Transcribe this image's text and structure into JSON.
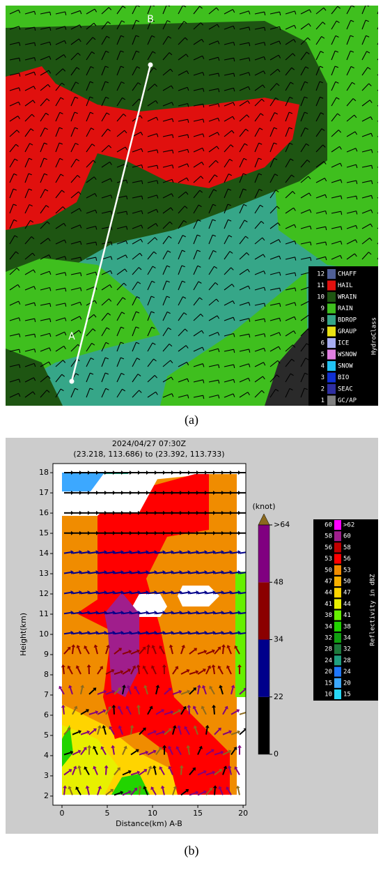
{
  "chart_data": [
    {
      "type": "hydroclass-map",
      "panel_label": "(a)",
      "annotations": [
        "A",
        "B"
      ],
      "legend": {
        "title": "HydroClass",
        "entries": [
          {
            "code": 12,
            "name": "CHAFF",
            "color": "#4f5f96"
          },
          {
            "code": 11,
            "name": "HAIL",
            "color": "#e0100e"
          },
          {
            "code": 10,
            "name": "WRAIN",
            "color": "#1e5512"
          },
          {
            "code": 9,
            "name": "RAIN",
            "color": "#3fbf1e"
          },
          {
            "code": 8,
            "name": "BDROP",
            "color": "#36a688"
          },
          {
            "code": 7,
            "name": "GRAUP",
            "color": "#e9e113"
          },
          {
            "code": 6,
            "name": "ICE",
            "color": "#a8aef2"
          },
          {
            "code": 5,
            "name": "WSNOW",
            "color": "#e07fe0"
          },
          {
            "code": 4,
            "name": "SNOW",
            "color": "#22c2f2"
          },
          {
            "code": 3,
            "name": "BIO",
            "color": "#1030d2"
          },
          {
            "code": 2,
            "name": "SEAC",
            "color": "#2e2ea0"
          },
          {
            "code": 1,
            "name": "GC/AP",
            "color": "#808080"
          }
        ]
      }
    },
    {
      "type": "contour-cross-section",
      "panel_label": "(b)",
      "title": "2024/04/27 07:30Z",
      "subtitle": "(23.218, 113.686) to (23.392, 113.733)",
      "xlabel": "Distance(km) A-B",
      "ylabel": "Height(km)",
      "xlim": [
        -1,
        20.3
      ],
      "ylim": [
        1.55,
        18.45
      ],
      "xticks": [
        0,
        5,
        10,
        15,
        20
      ],
      "yticks": [
        2,
        3,
        4,
        5,
        6,
        7,
        8,
        9,
        10,
        11,
        12,
        13,
        14,
        15,
        16,
        17,
        18
      ],
      "wind_colorbar": {
        "title": "(knot)",
        "ticks": [
          0,
          22,
          34,
          48,
          {
            "value": 64,
            "label": ">64"
          }
        ],
        "colors": [
          "#000000",
          "#00008b",
          "#8b0000",
          "#800080"
        ],
        "extend_color": "#8b6a1e"
      },
      "reflectivity_legend": {
        "title": "Reflectivity in dBZ",
        "entries": [
          {
            "level": 60,
            "upper": ">62",
            "color": "#ff00ff"
          },
          {
            "level": 58,
            "upper": 60,
            "color": "#a01e8c"
          },
          {
            "level": 56,
            "upper": 58,
            "color": "#c00000"
          },
          {
            "level": 53,
            "upper": 56,
            "color": "#ff0000"
          },
          {
            "level": 50,
            "upper": 53,
            "color": "#f08c00"
          },
          {
            "level": 47,
            "upper": 50,
            "color": "#f8b000"
          },
          {
            "level": 44,
            "upper": 47,
            "color": "#ffd400"
          },
          {
            "level": 41,
            "upper": 44,
            "color": "#e8f000"
          },
          {
            "level": 38,
            "upper": 41,
            "color": "#66f000"
          },
          {
            "level": 34,
            "upper": 38,
            "color": "#22d400"
          },
          {
            "level": 32,
            "upper": 34,
            "color": "#10a010"
          },
          {
            "level": 28,
            "upper": 32,
            "color": "#1e7a3c"
          },
          {
            "level": 24,
            "upper": 28,
            "color": "#20a080"
          },
          {
            "level": 20,
            "upper": 24,
            "color": "#1f78ff"
          },
          {
            "level": 15,
            "upper": 20,
            "color": "#3ca8ff"
          },
          {
            "level": 10,
            "upper": 15,
            "color": "#28d8f8"
          }
        ]
      }
    }
  ]
}
